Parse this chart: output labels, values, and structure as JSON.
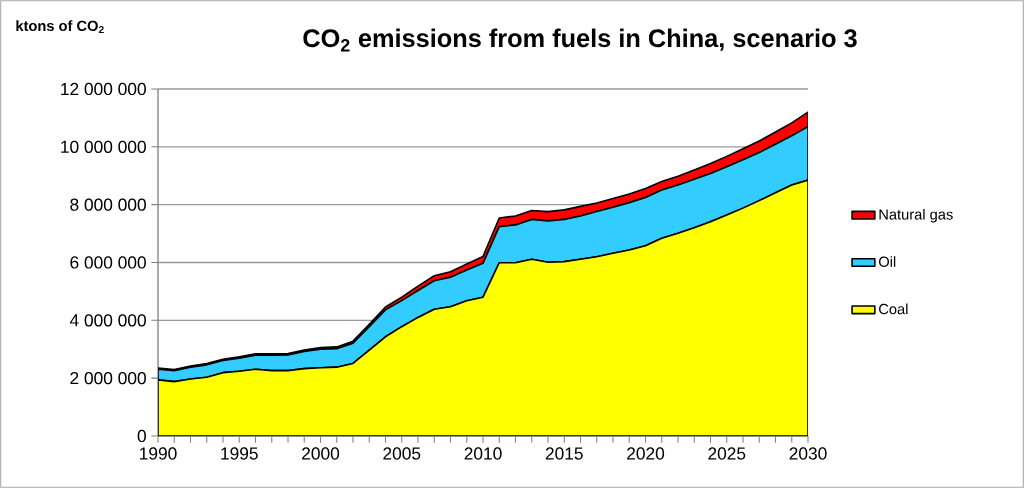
{
  "chart_data": {
    "type": "area",
    "stacked": true,
    "title": "CO$_{2}$ emissions from fuels in China, scenario 3",
    "ylabel": "ktons of CO$_{2}$",
    "x": [
      1990,
      1991,
      1992,
      1993,
      1994,
      1995,
      1996,
      1997,
      1998,
      1999,
      2000,
      2001,
      2002,
      2003,
      2004,
      2005,
      2006,
      2007,
      2008,
      2009,
      2010,
      2011,
      2012,
      2013,
      2014,
      2015,
      2016,
      2017,
      2018,
      2019,
      2020,
      2021,
      2022,
      2023,
      2024,
      2025,
      2026,
      2027,
      2028,
      2029,
      2030
    ],
    "series": [
      {
        "name": "Coal",
        "color": "#ffff00",
        "values": [
          1940000,
          1880000,
          1970000,
          2030000,
          2190000,
          2240000,
          2310000,
          2260000,
          2260000,
          2330000,
          2360000,
          2380000,
          2510000,
          2970000,
          3430000,
          3780000,
          4100000,
          4380000,
          4470000,
          4680000,
          4800000,
          5990000,
          5990000,
          6110000,
          6010000,
          6030000,
          6110000,
          6200000,
          6320000,
          6430000,
          6580000,
          6840000,
          7010000,
          7200000,
          7410000,
          7640000,
          7880000,
          8140000,
          8410000,
          8680000,
          8850000
        ]
      },
      {
        "name": "Oil",
        "color": "#33ccff",
        "values": [
          370000,
          380000,
          410000,
          430000,
          420000,
          450000,
          480000,
          530000,
          540000,
          590000,
          640000,
          640000,
          700000,
          810000,
          930000,
          900000,
          930000,
          990000,
          1020000,
          1060000,
          1170000,
          1250000,
          1310000,
          1380000,
          1430000,
          1460000,
          1500000,
          1560000,
          1590000,
          1640000,
          1670000,
          1670000,
          1670000,
          1680000,
          1670000,
          1670000,
          1670000,
          1660000,
          1680000,
          1700000,
          1850000
        ]
      },
      {
        "name": "Natural gas",
        "color": "#ff0000",
        "values": [
          40000,
          40000,
          40000,
          45000,
          45000,
          50000,
          50000,
          50000,
          50000,
          55000,
          60000,
          60000,
          70000,
          80000,
          100000,
          120000,
          150000,
          170000,
          190000,
          210000,
          240000,
          300000,
          310000,
          310000,
          320000,
          330000,
          330000,
          300000,
          300000,
          300000,
          310000,
          290000,
          300000,
          320000,
          340000,
          360000,
          380000,
          400000,
          420000,
          450000,
          500000
        ]
      }
    ],
    "xlim": [
      1990,
      2030
    ],
    "xticks": [
      1990,
      {
        "value": 1991,
        "label": null
      },
      {
        "value": 1992,
        "label": null
      },
      {
        "value": 1993,
        "label": null
      },
      {
        "value": 1994,
        "label": null
      },
      1995,
      {
        "value": 1996,
        "label": null
      },
      {
        "value": 1997,
        "label": null
      },
      {
        "value": 1998,
        "label": null
      },
      {
        "value": 1999,
        "label": null
      },
      2000,
      {
        "value": 2001,
        "label": null
      },
      {
        "value": 2002,
        "label": null
      },
      {
        "value": 2003,
        "label": null
      },
      {
        "value": 2004,
        "label": null
      },
      2005,
      {
        "value": 2006,
        "label": null
      },
      {
        "value": 2007,
        "label": null
      },
      {
        "value": 2008,
        "label": null
      },
      {
        "value": 2009,
        "label": null
      },
      2010,
      {
        "value": 2011,
        "label": null
      },
      {
        "value": 2012,
        "label": null
      },
      {
        "value": 2013,
        "label": null
      },
      {
        "value": 2014,
        "label": null
      },
      2015,
      {
        "value": 2016,
        "label": null
      },
      {
        "value": 2017,
        "label": null
      },
      {
        "value": 2018,
        "label": null
      },
      {
        "value": 2019,
        "label": null
      },
      2020,
      {
        "value": 2021,
        "label": null
      },
      {
        "value": 2022,
        "label": null
      },
      {
        "value": 2023,
        "label": null
      },
      {
        "value": 2024,
        "label": null
      },
      2025,
      {
        "value": 2026,
        "label": null
      },
      {
        "value": 2027,
        "label": null
      },
      {
        "value": 2028,
        "label": null
      },
      {
        "value": 2029,
        "label": null
      },
      2030
    ],
    "ylim": [
      0,
      12000000
    ],
    "yticks": [
      0,
      {
        "value": 2000000,
        "label": "2 000 000"
      },
      {
        "value": 4000000,
        "label": "4 000 000"
      },
      {
        "value": 6000000,
        "label": "6 000 000"
      },
      {
        "value": 8000000,
        "label": "8 000 000"
      },
      {
        "value": 10000000,
        "label": "10 000 000"
      },
      {
        "value": 12000000,
        "label": "12 000 000"
      }
    ],
    "grid": "y",
    "legend": "right"
  }
}
